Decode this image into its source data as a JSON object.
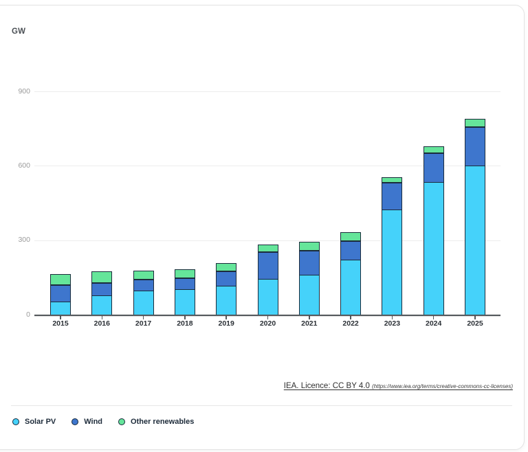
{
  "chart_data": {
    "type": "bar",
    "stacked": true,
    "title": "",
    "ylabel": "GW",
    "xlabel": "",
    "categories": [
      "2015",
      "2016",
      "2017",
      "2018",
      "2019",
      "2020",
      "2021",
      "2022",
      "2023",
      "2024",
      "2025"
    ],
    "series": [
      {
        "name": "Solar PV",
        "color": "#45d2fa",
        "values": [
          55,
          80,
          100,
          105,
          118,
          148,
          163,
          223,
          426,
          537,
          605
        ]
      },
      {
        "name": "Wind",
        "color": "#3e76cd",
        "values": [
          70,
          52,
          47,
          48,
          60,
          112,
          100,
          78,
          111,
          119,
          158
        ]
      },
      {
        "name": "Other renewables",
        "color": "#65e59a",
        "values": [
          43,
          46,
          37,
          36,
          33,
          31,
          37,
          37,
          23,
          28,
          33
        ]
      }
    ],
    "ylim": [
      0,
      900
    ],
    "yticks": [
      0,
      300,
      600,
      900
    ],
    "grid": true,
    "legend_position": "bottom-left"
  },
  "footer": {
    "licence_text": "IEA. Licence: CC BY 4.0",
    "licence_url_text": "(https://www.iea.org/terms/creative-commons-cc-licenses)"
  },
  "colors": {
    "solar_pv": "#45d2fa",
    "wind": "#3e76cd",
    "other_renewables": "#65e59a",
    "segment_border": "#1b2b3b",
    "axis_line": "#54585c",
    "gridline": "#ececec"
  }
}
